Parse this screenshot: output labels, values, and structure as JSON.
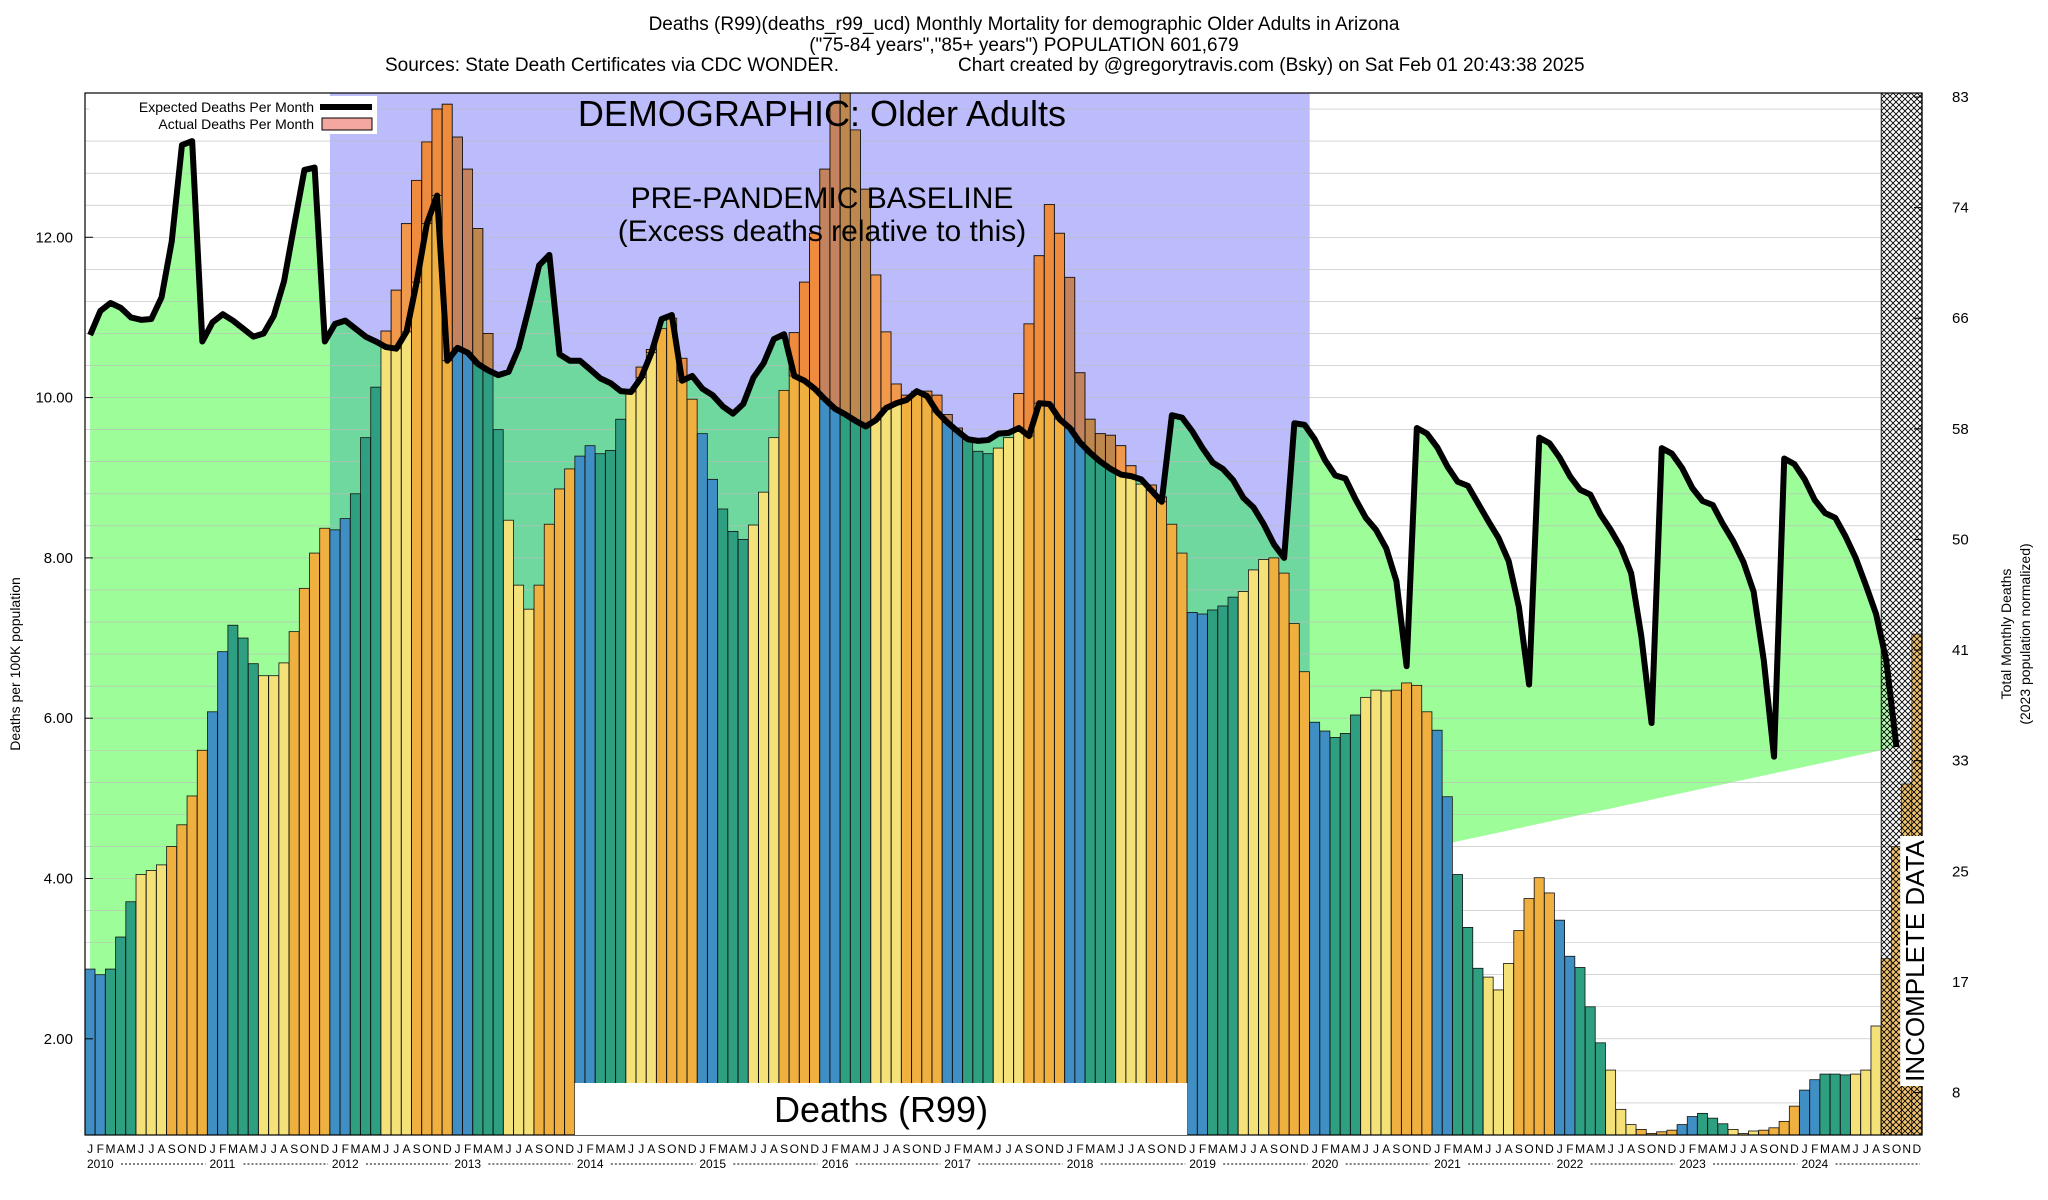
{
  "header": {
    "line1": "Deaths (R99)(deaths_r99_ucd) Monthly Mortality for demographic Older Adults in Arizona",
    "line2": "(\"75-84 years\",\"85+ years\") POPULATION 601,679",
    "line3a": "Sources: State Death Certificates via CDC WONDER.",
    "line3b": "Chart created by @gregorytravis.com (Bsky) on Sat Feb 01 20:43:38 2025"
  },
  "chart_data": {
    "type": "bar",
    "title": "Deaths (R99)(deaths_r99_ucd) Monthly Mortality for demographic Older Adults in Arizona",
    "ylabel": "Deaths per 100K population",
    "ylabel_right": "Total Monthly Deaths",
    "ylabel_right_sub": "(2023 population normalized)",
    "ylim": [
      0.8,
      13.8
    ],
    "yticks": [
      2,
      4,
      6,
      8,
      10,
      12
    ],
    "ytick_labels": [
      "2.00",
      "4.00",
      "6.00",
      "8.00",
      "10.00",
      "12.00"
    ],
    "right_ticks": [
      {
        "v": 1.33,
        "label": "8"
      },
      {
        "v": 2.71,
        "label": "17"
      },
      {
        "v": 4.09,
        "label": "25"
      },
      {
        "v": 5.47,
        "label": "33"
      },
      {
        "v": 6.85,
        "label": "41"
      },
      {
        "v": 8.23,
        "label": "50"
      },
      {
        "v": 9.61,
        "label": "58"
      },
      {
        "v": 10.99,
        "label": "66"
      },
      {
        "v": 12.37,
        "label": "74"
      },
      {
        "v": 13.75,
        "label": "83"
      }
    ],
    "years": [
      "2010",
      "2011",
      "2012",
      "2013",
      "2014",
      "2015",
      "2016",
      "2017",
      "2018",
      "2019",
      "2020",
      "2021",
      "2022",
      "2023",
      "2024"
    ],
    "month_letters": [
      "J",
      "F",
      "M",
      "A",
      "M",
      "J",
      "J",
      "A",
      "S",
      "O",
      "N",
      "D"
    ],
    "legend": [
      {
        "label": "Expected Deaths Per Month",
        "color": "#000000"
      },
      {
        "label": "Actual Deaths Per Month",
        "color": "#f4a6a0"
      }
    ],
    "colors": {
      "winter": "#3f8fc4",
      "spring": "#2e9f80",
      "summer": "#f4e278",
      "fall": "#f0b040",
      "green_fill": "#9dfd99",
      "baseline_band": "#bcbcfc",
      "excess_fill": "#ef7f3c",
      "baseline_green": "#6fd89f",
      "expected_line": "#000000"
    },
    "baseline_period": {
      "start": "2012-01",
      "end": "2019-12"
    },
    "incomplete_period": {
      "start": "2024-09",
      "end": "2024-12"
    },
    "annotations": {
      "demographic": "DEMOGRAPHIC: Older Adults",
      "baseline_1": "PRE-PANDEMIC BASELINE",
      "baseline_2": "(Excess deaths relative to this)",
      "cause_box": "Deaths (R99)",
      "incomplete": "INCOMPLETE DATA"
    },
    "series": [
      {
        "name": "Actual Deaths Per Month",
        "values": [
          2.87,
          2.8,
          2.87,
          3.27,
          3.71,
          4.05,
          4.1,
          4.17,
          4.4,
          4.67,
          5.03,
          5.6,
          6.08,
          6.83,
          7.16,
          7.0,
          6.68,
          6.53,
          6.53,
          6.69,
          7.08,
          7.62,
          8.06,
          8.37,
          8.35,
          8.49,
          8.8,
          9.5,
          10.13,
          10.83,
          11.34,
          12.17,
          12.71,
          13.19,
          13.6,
          13.66,
          13.25,
          12.85,
          12.11,
          10.8,
          9.6,
          8.47,
          7.66,
          7.36,
          7.66,
          8.42,
          8.86,
          9.11,
          9.27,
          9.4,
          9.3,
          9.34,
          9.73,
          10.09,
          10.38,
          10.6,
          10.86,
          10.99,
          10.49,
          9.98,
          9.55,
          8.98,
          8.61,
          8.33,
          8.23,
          8.41,
          8.82,
          9.5,
          10.09,
          10.81,
          11.44,
          12.05,
          12.85,
          13.67,
          13.89,
          13.34,
          12.6,
          11.53,
          10.82,
          10.17,
          10.03,
          10.08,
          10.08,
          10.03,
          9.79,
          9.62,
          9.49,
          9.33,
          9.3,
          9.37,
          9.5,
          10.05,
          10.92,
          11.77,
          12.41,
          12.05,
          11.5,
          10.31,
          9.73,
          9.55,
          9.53,
          9.4,
          9.15,
          8.92,
          8.91,
          8.76,
          8.42,
          8.06,
          7.32,
          7.3,
          7.35,
          7.4,
          7.51,
          7.58,
          7.85,
          7.98,
          8.0,
          7.81,
          7.18,
          6.58,
          5.95,
          5.84,
          5.76,
          5.81,
          6.04,
          6.26,
          6.35,
          6.34,
          6.35,
          6.44,
          6.41,
          6.08,
          5.85,
          5.02,
          4.05,
          3.39,
          2.88,
          2.77,
          2.61,
          2.94,
          3.35,
          3.75,
          4.01,
          3.82,
          3.48,
          3.03,
          2.89,
          2.4,
          1.95,
          1.61,
          1.12,
          0.93,
          0.87,
          0.82,
          0.84,
          0.86,
          0.93,
          1.03,
          1.07,
          1.01,
          0.94,
          0.87,
          0.82,
          0.85,
          0.86,
          0.89,
          0.97,
          1.16,
          1.36,
          1.49,
          1.56,
          1.56,
          1.55,
          1.56,
          1.61,
          2.16,
          3.0,
          4.4,
          5.18,
          7.05
        ]
      },
      {
        "name": "Expected Deaths Per Month",
        "values": [
          10.78,
          11.08,
          11.18,
          11.12,
          11.0,
          10.97,
          10.98,
          11.25,
          11.95,
          13.15,
          13.2,
          10.7,
          10.94,
          11.04,
          10.96,
          10.86,
          10.76,
          10.8,
          11.02,
          11.45,
          12.15,
          12.84,
          12.87,
          10.7,
          10.92,
          10.96,
          10.86,
          10.76,
          10.7,
          10.63,
          10.61,
          10.82,
          11.44,
          12.17,
          12.52,
          10.46,
          10.62,
          10.56,
          10.42,
          10.34,
          10.28,
          10.32,
          10.62,
          11.12,
          11.65,
          11.78,
          10.54,
          10.46,
          10.46,
          10.35,
          10.24,
          10.18,
          10.08,
          10.07,
          10.25,
          10.56,
          10.98,
          11.03,
          10.21,
          10.27,
          10.11,
          10.03,
          9.89,
          9.8,
          9.92,
          10.25,
          10.43,
          10.73,
          10.79,
          10.27,
          10.21,
          10.11,
          9.98,
          9.86,
          9.79,
          9.71,
          9.64,
          9.72,
          9.87,
          9.93,
          9.97,
          10.08,
          10.02,
          9.82,
          9.69,
          9.58,
          9.48,
          9.46,
          9.47,
          9.55,
          9.56,
          9.62,
          9.52,
          9.93,
          9.92,
          9.73,
          9.62,
          9.44,
          9.31,
          9.2,
          9.11,
          9.04,
          9.02,
          8.98,
          8.84,
          8.7,
          9.78,
          9.75,
          9.58,
          9.37,
          9.19,
          9.11,
          8.97,
          8.75,
          8.63,
          8.42,
          8.17,
          8.0,
          9.68,
          9.66,
          9.48,
          9.22,
          9.03,
          8.99,
          8.73,
          8.5,
          8.35,
          8.12,
          7.71,
          6.65,
          9.62,
          9.55,
          9.38,
          9.14,
          8.95,
          8.9,
          8.68,
          8.46,
          8.25,
          7.96,
          7.39,
          6.42,
          9.5,
          9.43,
          9.25,
          9.02,
          8.85,
          8.79,
          8.54,
          8.35,
          8.13,
          7.81,
          7.02,
          5.94,
          9.37,
          9.3,
          9.12,
          8.87,
          8.71,
          8.66,
          8.42,
          8.21,
          7.95,
          7.58,
          6.72,
          5.52,
          9.24,
          9.17,
          8.98,
          8.72,
          8.56,
          8.5,
          8.27,
          8.0,
          7.66,
          7.3,
          6.72,
          5.64
        ]
      }
    ]
  }
}
